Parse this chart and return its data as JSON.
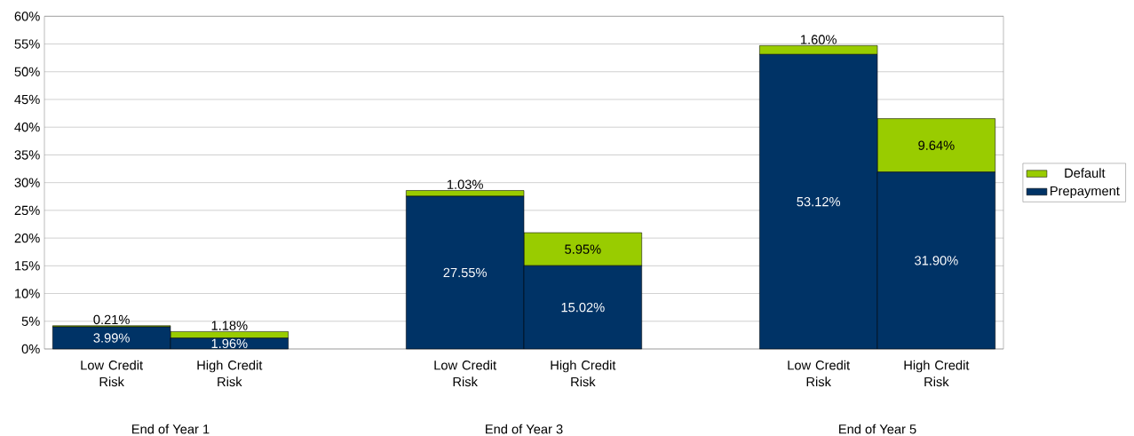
{
  "chart_data": {
    "type": "bar",
    "stacked": true,
    "categories": [
      "Low Credit Risk",
      "High Credit Risk",
      null,
      "Low Credit Risk",
      "High Credit Risk",
      null,
      "Low Credit Risk",
      "High Credit Risk"
    ],
    "series": [
      {
        "name": "Prepayment",
        "color": "#003366",
        "values": [
          3.99,
          1.96,
          null,
          27.55,
          15.02,
          null,
          53.12,
          31.9
        ],
        "value_labels": [
          "3.99%",
          "1.96%",
          null,
          "27.55%",
          "15.02%",
          null,
          "53.12%",
          "31.90%"
        ]
      },
      {
        "name": "Default",
        "color": "#99cc00",
        "values": [
          0.21,
          1.18,
          null,
          1.03,
          5.95,
          null,
          1.6,
          9.64
        ],
        "value_labels": [
          "0.21%",
          "1.18%",
          null,
          "1.03%",
          "5.95%",
          null,
          "1.60%",
          "9.64%"
        ]
      }
    ],
    "ylim": [
      0,
      60
    ],
    "yticks": [
      {
        "value": 0,
        "label": "0%"
      },
      {
        "value": 5,
        "label": "5%"
      },
      {
        "value": 10,
        "label": "10%"
      },
      {
        "value": 15,
        "label": "15%"
      },
      {
        "value": 20,
        "label": "20%"
      },
      {
        "value": 25,
        "label": "25%"
      },
      {
        "value": 30,
        "label": "30%"
      },
      {
        "value": 35,
        "label": "35%"
      },
      {
        "value": 40,
        "label": "40%"
      },
      {
        "value": 45,
        "label": "45%"
      },
      {
        "value": 50,
        "label": "50%"
      },
      {
        "value": 55,
        "label": "55%"
      },
      {
        "value": 60,
        "label": "60%"
      }
    ],
    "annotations": [
      "End of Year 1",
      "End of Year 3",
      "End of Year 5"
    ],
    "grid": "y",
    "legend": "right"
  }
}
